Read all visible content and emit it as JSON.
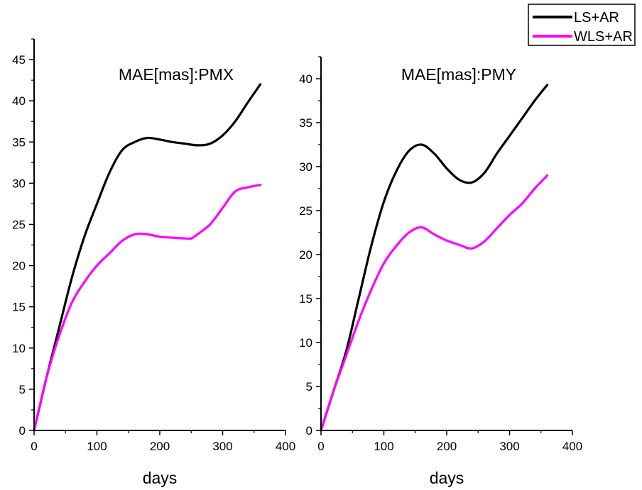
{
  "legend": {
    "placement": "top-right",
    "items": [
      {
        "label": "LS+AR",
        "color": "#000000"
      },
      {
        "label": "WLS+AR",
        "color": "#ff00ff"
      }
    ]
  },
  "chart_data": [
    {
      "type": "line",
      "title": "MAE[mas]:PMX",
      "xlabel": "days",
      "ylabel": "",
      "xlim": [
        0,
        400
      ],
      "ylim": [
        0,
        47.5
      ],
      "xticks": [
        0,
        100,
        200,
        300,
        400
      ],
      "yticks": [
        0,
        5,
        10,
        15,
        20,
        25,
        30,
        35,
        40,
        45
      ],
      "grid": false,
      "series": [
        {
          "name": "LS+AR",
          "color": "#000000",
          "x": [
            0,
            20,
            40,
            60,
            80,
            100,
            120,
            140,
            160,
            180,
            200,
            220,
            240,
            260,
            280,
            300,
            320,
            340,
            360
          ],
          "y": [
            0,
            6.5,
            12.5,
            18.5,
            23.5,
            27.5,
            31.3,
            34.0,
            35.0,
            35.5,
            35.3,
            35.0,
            34.8,
            34.6,
            34.8,
            35.8,
            37.5,
            39.8,
            42.0
          ]
        },
        {
          "name": "WLS+AR",
          "color": "#ff00ff",
          "x": [
            0,
            20,
            40,
            60,
            80,
            100,
            120,
            140,
            160,
            180,
            200,
            220,
            240,
            250,
            260,
            280,
            300,
            320,
            340,
            360
          ],
          "y": [
            0,
            6.5,
            11.5,
            15.5,
            18.0,
            20.0,
            21.5,
            23.0,
            23.8,
            23.8,
            23.5,
            23.4,
            23.3,
            23.3,
            23.8,
            25.0,
            27.0,
            29.0,
            29.5,
            29.8
          ]
        }
      ]
    },
    {
      "type": "line",
      "title": "MAE[mas]:PMY",
      "xlabel": "days",
      "ylabel": "",
      "xlim": [
        0,
        400
      ],
      "ylim": [
        0,
        42.5
      ],
      "xticks": [
        0,
        100,
        200,
        300,
        400
      ],
      "yticks": [
        0,
        5,
        10,
        15,
        20,
        25,
        30,
        35,
        40
      ],
      "grid": false,
      "series": [
        {
          "name": "LS+AR",
          "color": "#000000",
          "x": [
            0,
            20,
            40,
            60,
            80,
            100,
            120,
            140,
            160,
            180,
            200,
            220,
            240,
            260,
            280,
            300,
            320,
            340,
            360
          ],
          "y": [
            0,
            4.5,
            9.0,
            15.0,
            21.0,
            26.0,
            29.5,
            31.8,
            32.5,
            31.5,
            29.8,
            28.5,
            28.2,
            29.3,
            31.5,
            33.5,
            35.5,
            37.5,
            39.3
          ]
        },
        {
          "name": "WLS+AR",
          "color": "#ff00ff",
          "x": [
            0,
            20,
            40,
            60,
            80,
            100,
            120,
            140,
            160,
            180,
            200,
            220,
            240,
            260,
            280,
            300,
            320,
            340,
            360
          ],
          "y": [
            0,
            4.5,
            8.5,
            12.5,
            16.0,
            19.0,
            21.0,
            22.5,
            23.1,
            22.3,
            21.6,
            21.1,
            20.7,
            21.5,
            23.0,
            24.5,
            25.8,
            27.5,
            29.0
          ]
        }
      ]
    }
  ]
}
